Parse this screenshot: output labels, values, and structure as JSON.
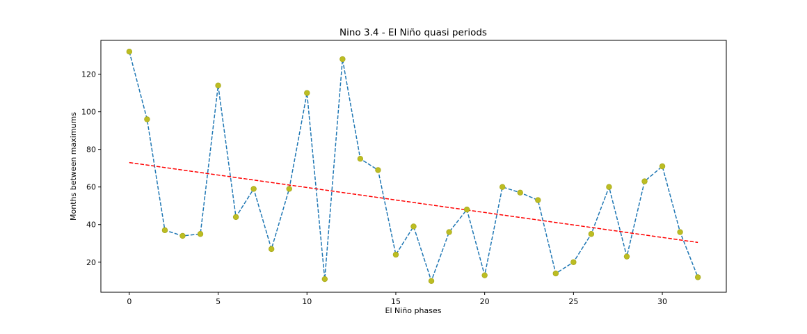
{
  "chart_data": {
    "type": "line",
    "title": "Nino 3.4 - El Niño quasi periods",
    "xlabel": "El Niño phases",
    "ylabel": "Months between maximums",
    "xlim": [
      -1.6,
      33.6
    ],
    "ylim": [
      4,
      138
    ],
    "xticks": [
      0,
      5,
      10,
      15,
      20,
      25,
      30
    ],
    "yticks": [
      20,
      40,
      60,
      80,
      100,
      120
    ],
    "grid": false,
    "series": [
      {
        "style": "dashed line with circle markers",
        "line_color": "#1f77b4",
        "marker_color": "#bcbd22",
        "x": [
          0,
          1,
          2,
          3,
          4,
          5,
          6,
          7,
          8,
          9,
          10,
          11,
          12,
          13,
          14,
          15,
          16,
          17,
          18,
          19,
          20,
          21,
          22,
          23,
          24,
          25,
          26,
          27,
          28,
          29,
          30,
          31,
          32
        ],
        "y": [
          132,
          96,
          37,
          34,
          35,
          114,
          44,
          59,
          27,
          59,
          110,
          11,
          128,
          75,
          69,
          24,
          39,
          10,
          36,
          48,
          13,
          60,
          57,
          53,
          14,
          20,
          35,
          60,
          23,
          63,
          71,
          36,
          12
        ]
      },
      {
        "style": "dashed trend line",
        "line_color": "#ff0000",
        "x": [
          0,
          32
        ],
        "y": [
          73,
          30.5
        ]
      }
    ]
  }
}
